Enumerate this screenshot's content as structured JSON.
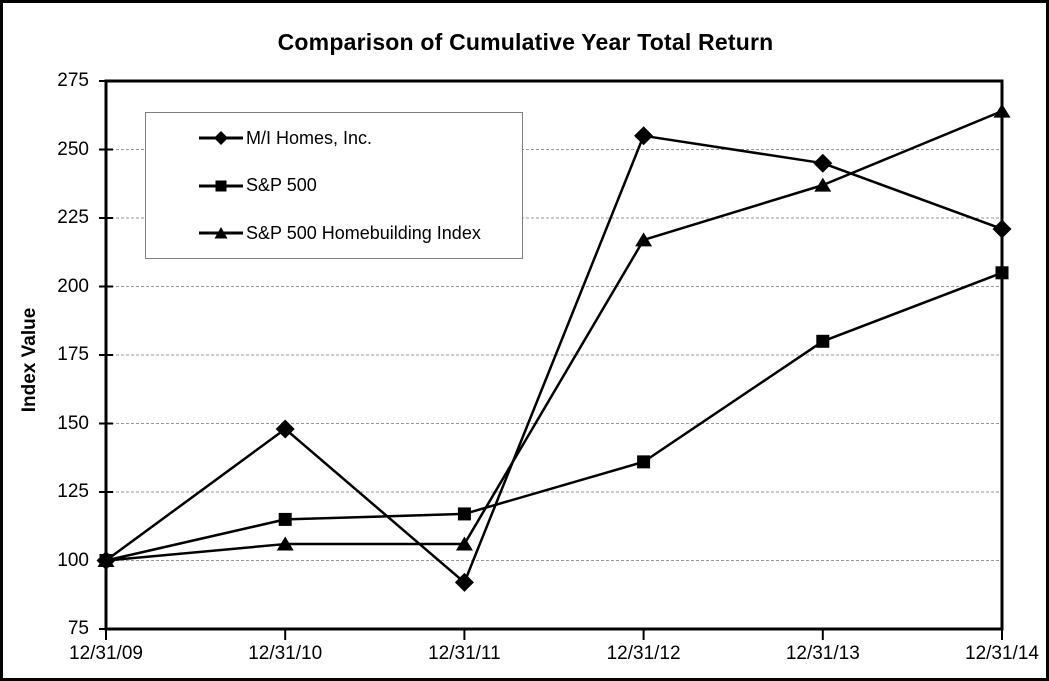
{
  "chart_data": {
    "type": "line",
    "title": "Comparison of Cumulative Year Total Return",
    "ylabel": "Index Value",
    "xlabel": "",
    "categories": [
      "12/31/09",
      "12/31/10",
      "12/31/11",
      "12/31/12",
      "12/31/13",
      "12/31/14"
    ],
    "ylim": [
      75,
      275
    ],
    "yticks": [
      75,
      100,
      125,
      150,
      175,
      200,
      225,
      250,
      275
    ],
    "grid": "horizontal-dashed",
    "legend_position": "upper-left-inside",
    "colors": {
      "series": "#000000",
      "grid": "#999999",
      "frame": "#000000",
      "background": "#ffffff",
      "legend_border": "#7f7f7f"
    },
    "series": [
      {
        "name": "M/I Homes, Inc.",
        "marker": "diamond",
        "values": [
          100,
          148,
          92,
          255,
          245,
          221
        ]
      },
      {
        "name": "S&P 500",
        "marker": "square",
        "values": [
          100,
          115,
          117,
          136,
          180,
          205
        ]
      },
      {
        "name": "S&P 500 Homebuilding Index",
        "marker": "triangle",
        "values": [
          100,
          106,
          106,
          217,
          237,
          264
        ]
      }
    ]
  }
}
